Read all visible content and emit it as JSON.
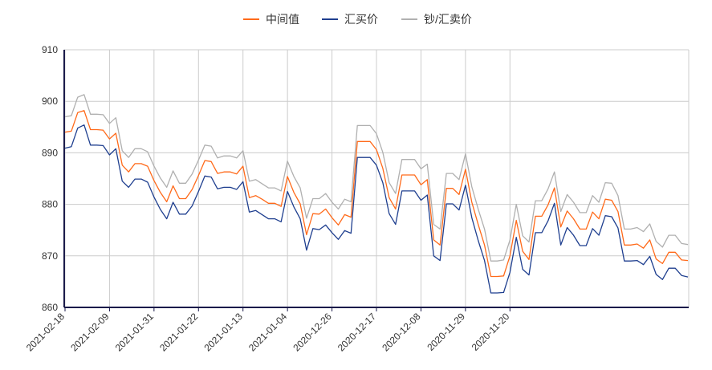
{
  "chart_data": {
    "type": "line",
    "title": "",
    "xlabel": "",
    "ylabel": "",
    "ylim": [
      860,
      910
    ],
    "yticks": [
      860,
      870,
      880,
      890,
      900,
      910
    ],
    "grid": true,
    "legend_position": "top-center",
    "x_tick_labels": [
      "2021-02-18",
      "2021-02-09",
      "2021-01-31",
      "2021-01-22",
      "2021-01-13",
      "2021-01-04",
      "2020-12-26",
      "2020-12-17",
      "2020-12-08",
      "2020-11-29",
      "2020-11-20"
    ],
    "series": [
      {
        "name": "中间值",
        "color": "#ff6a1a",
        "values": [
          894.0,
          894.2,
          897.8,
          898.2,
          894.5,
          894.5,
          894.4,
          892.7,
          893.8,
          887.6,
          886.3,
          887.9,
          887.9,
          887.4,
          884.6,
          882.3,
          880.5,
          883.6,
          881.1,
          881.1,
          882.9,
          885.6,
          888.5,
          888.3,
          886.0,
          886.3,
          886.3,
          885.9,
          887.4,
          881.3,
          881.7,
          881.0,
          880.2,
          880.2,
          879.6,
          885.4,
          882.3,
          880.1,
          874.1,
          878.2,
          878.1,
          879.1,
          877.4,
          876.0,
          878.0,
          877.5,
          892.2,
          892.2,
          892.2,
          890.6,
          887.0,
          881.3,
          879.1,
          885.7,
          885.7,
          885.7,
          883.8,
          884.8,
          873.1,
          872.1,
          883.1,
          883.1,
          881.9,
          886.8,
          880.4,
          876.1,
          872.1,
          866.0,
          866.0,
          866.1,
          870.0,
          876.9,
          870.9,
          869.3,
          877.7,
          877.7,
          879.9,
          883.2,
          875.6,
          878.7,
          877.2,
          875.2,
          875.2,
          878.5,
          877.2,
          881.0,
          880.8,
          878.6,
          872.1,
          872.1,
          872.3,
          871.5,
          873.1,
          869.4,
          868.5,
          870.7,
          870.7,
          869.2,
          869.1
        ]
      },
      {
        "name": "汇买价",
        "color": "#1f3f8f",
        "values": [
          890.9,
          891.2,
          894.8,
          895.4,
          891.5,
          891.5,
          891.4,
          889.6,
          890.8,
          884.5,
          883.3,
          884.9,
          884.9,
          884.3,
          881.4,
          879.0,
          877.2,
          880.4,
          878.1,
          878.1,
          879.7,
          882.5,
          885.5,
          885.3,
          883.0,
          883.3,
          883.3,
          882.9,
          884.4,
          878.5,
          878.8,
          878.0,
          877.2,
          877.2,
          876.6,
          882.5,
          879.5,
          877.2,
          871.1,
          875.3,
          875.1,
          876.0,
          874.5,
          873.2,
          874.9,
          874.4,
          889.1,
          889.1,
          889.1,
          887.6,
          884.2,
          878.2,
          876.1,
          882.6,
          882.6,
          882.6,
          880.8,
          881.8,
          870.0,
          869.1,
          880.1,
          880.1,
          878.9,
          883.7,
          877.4,
          873.0,
          869.1,
          862.8,
          862.8,
          862.9,
          866.8,
          873.6,
          867.4,
          866.3,
          874.5,
          874.5,
          876.8,
          880.2,
          872.1,
          875.5,
          874.0,
          872.0,
          872.0,
          875.3,
          874.0,
          877.8,
          877.6,
          875.4,
          869.0,
          869.0,
          869.1,
          868.3,
          869.9,
          866.4,
          865.4,
          867.6,
          867.6,
          866.2,
          865.9
        ]
      },
      {
        "name": "钞/汇卖价",
        "color": "#b0b0b0",
        "values": [
          897.0,
          897.2,
          900.8,
          901.3,
          897.5,
          897.5,
          897.4,
          895.7,
          896.8,
          890.4,
          889.1,
          890.8,
          890.8,
          890.2,
          887.4,
          885.1,
          883.3,
          886.5,
          884.1,
          884.1,
          885.9,
          888.6,
          891.5,
          891.3,
          889.0,
          889.4,
          889.4,
          889.0,
          890.4,
          884.5,
          884.8,
          884.0,
          883.2,
          883.2,
          882.6,
          888.4,
          885.4,
          883.2,
          877.3,
          881.1,
          881.1,
          882.1,
          880.4,
          879.1,
          881.0,
          880.5,
          895.3,
          895.3,
          895.3,
          893.7,
          890.1,
          884.2,
          882.1,
          888.7,
          888.7,
          888.7,
          886.9,
          887.8,
          876.1,
          875.2,
          886.0,
          886.0,
          884.8,
          889.8,
          883.4,
          879.1,
          875.2,
          869.0,
          869.0,
          869.2,
          873.1,
          880.0,
          873.9,
          872.7,
          880.7,
          880.7,
          883.0,
          886.3,
          878.6,
          881.9,
          880.4,
          878.4,
          878.4,
          881.7,
          880.4,
          884.2,
          884.1,
          881.7,
          875.2,
          875.2,
          875.5,
          874.7,
          876.2,
          872.8,
          871.7,
          874.0,
          874.0,
          872.4,
          872.2
        ]
      }
    ]
  }
}
